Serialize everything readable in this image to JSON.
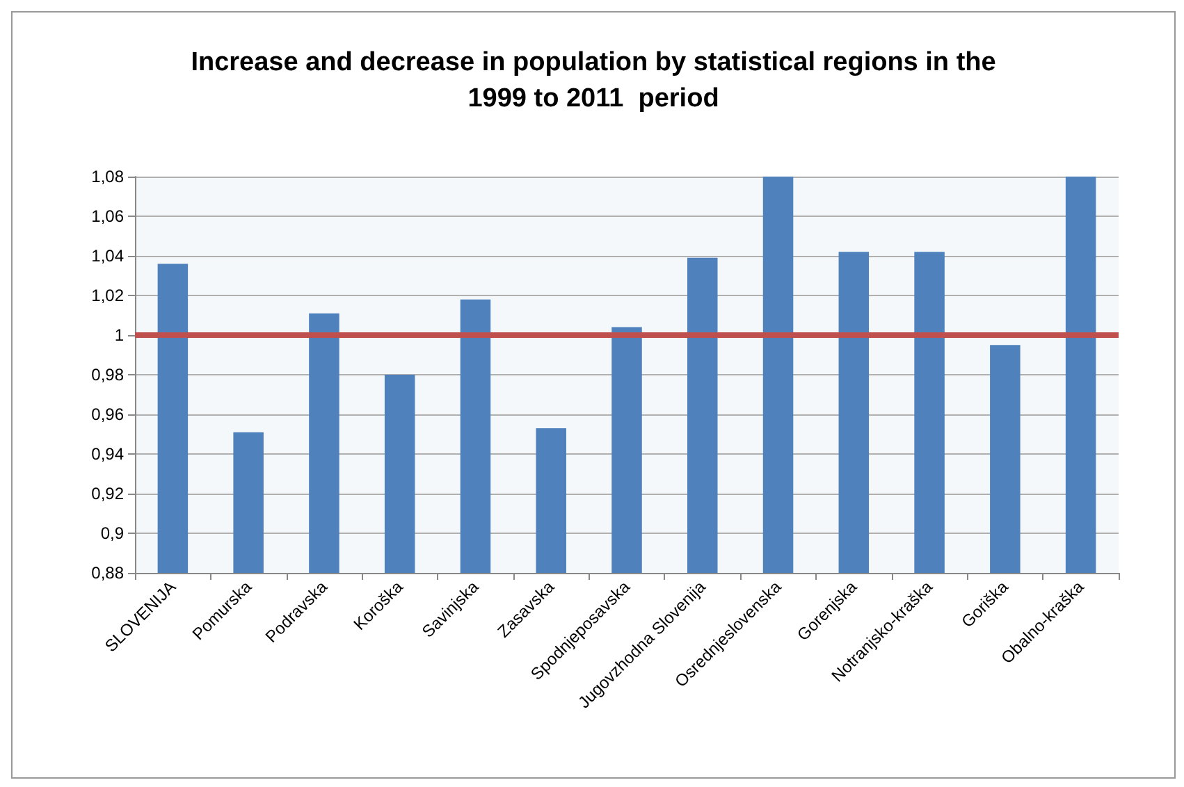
{
  "chart_data": {
    "type": "bar",
    "title": "Increase and decrease in population by statistical regions in the\n1999 to 2011  period",
    "categories": [
      "SLOVENIJA",
      "Pomurska",
      "Podravska",
      "Koroška",
      "Savinjska",
      "Zasavska",
      "Spodnjeposavska",
      "Jugovzhodna Slovenija",
      "Osrednjeslovenska",
      "Gorenjska",
      "Notranjsko-kraška",
      "Goriška",
      "Obalno-kraška"
    ],
    "values": [
      1.036,
      0.951,
      1.011,
      0.98,
      1.018,
      0.953,
      1.004,
      1.039,
      1.08,
      1.042,
      1.042,
      0.995,
      1.08
    ],
    "color": "#4f81bd",
    "ylim": [
      0.88,
      1.08
    ],
    "yticks": [
      {
        "value": 0.88,
        "label": "0,88"
      },
      {
        "value": 0.9,
        "label": "0,9"
      },
      {
        "value": 0.92,
        "label": "0,92"
      },
      {
        "value": 0.94,
        "label": "0,94"
      },
      {
        "value": 0.96,
        "label": "0,96"
      },
      {
        "value": 0.98,
        "label": "0,98"
      },
      {
        "value": 1,
        "label": "1"
      },
      {
        "value": 1.02,
        "label": "1,02"
      },
      {
        "value": 1.04,
        "label": "1,04"
      },
      {
        "value": 1.06,
        "label": "1,06"
      },
      {
        "value": 1.08,
        "label": "1,08"
      }
    ],
    "ref_lines": [
      {
        "axis": "y",
        "value": 1,
        "color": "#c0504d"
      }
    ],
    "grid": "y"
  }
}
